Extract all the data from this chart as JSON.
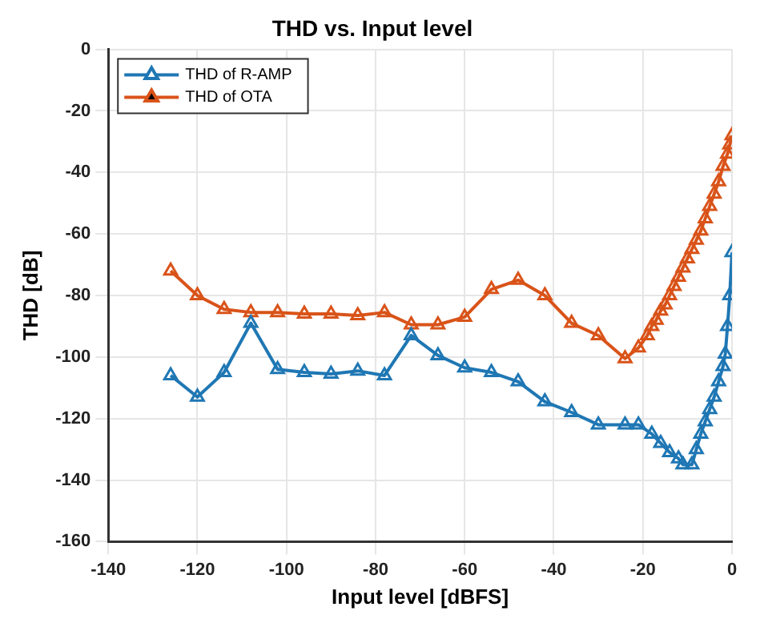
{
  "chart_data": {
    "type": "line",
    "title": "THD vs. Input level",
    "xlabel": "Input level [dBFS]",
    "ylabel": "THD [dB]",
    "xlim": [
      -140,
      0
    ],
    "xticks": [
      -140,
      -120,
      -100,
      -80,
      -60,
      -40,
      -20,
      0
    ],
    "ylim": [
      -160,
      0
    ],
    "yticks": [
      -160,
      -140,
      -120,
      -100,
      -80,
      -60,
      -40,
      -20,
      0
    ],
    "grid": true,
    "legend": "top left",
    "marker": "triangle",
    "line_style": "solid",
    "series": [
      {
        "name": "THD of R-AMP",
        "color": "#1f77b4",
        "x": [
          -126,
          -120,
          -114,
          -108,
          -102,
          -96,
          -90,
          -84,
          -78,
          -72,
          -66,
          -60,
          -54,
          -48,
          -42,
          -36,
          -30,
          -24,
          -21,
          -18,
          -16,
          -14,
          -12,
          -11,
          -9,
          -8,
          -7,
          -6,
          -5,
          -4,
          -3,
          -2,
          -1.5,
          -1,
          -0.5,
          0
        ],
        "values": [
          -106,
          -113,
          -105,
          -89,
          -104,
          -105,
          -105.5,
          -104.5,
          -106,
          -93,
          -99.5,
          -103.5,
          -105,
          -108,
          -114.5,
          -118,
          -122,
          -122,
          -122,
          -125,
          -128,
          -131,
          -133,
          -135,
          -135,
          -130,
          -125,
          -121,
          -117,
          -113,
          -108,
          -103,
          -99,
          -90,
          -80,
          -66
        ]
      },
      {
        "name": "THD of OTA",
        "color": "#d95319",
        "x": [
          -126,
          -120,
          -114,
          -108,
          -102,
          -96,
          -90,
          -84,
          -78,
          -72,
          -66,
          -60,
          -54,
          -48,
          -42,
          -36,
          -30,
          -24,
          -21,
          -19,
          -18,
          -17,
          -16,
          -15,
          -14,
          -13,
          -12,
          -11,
          -10,
          -9,
          -8,
          -7,
          -6,
          -5,
          -4,
          -3,
          -2,
          -1,
          -0.5,
          0
        ],
        "values": [
          -72,
          -80,
          -84.5,
          -85.5,
          -85.5,
          -86,
          -86,
          -86.5,
          -85.5,
          -89.5,
          -89.5,
          -87,
          -78,
          -75,
          -80,
          -89,
          -93,
          -100.5,
          -97,
          -93,
          -90,
          -88,
          -85,
          -83,
          -80,
          -77,
          -74,
          -71,
          -68,
          -65,
          -62,
          -59,
          -55,
          -51,
          -47,
          -43,
          -38,
          -34,
          -31,
          -28
        ]
      }
    ]
  }
}
